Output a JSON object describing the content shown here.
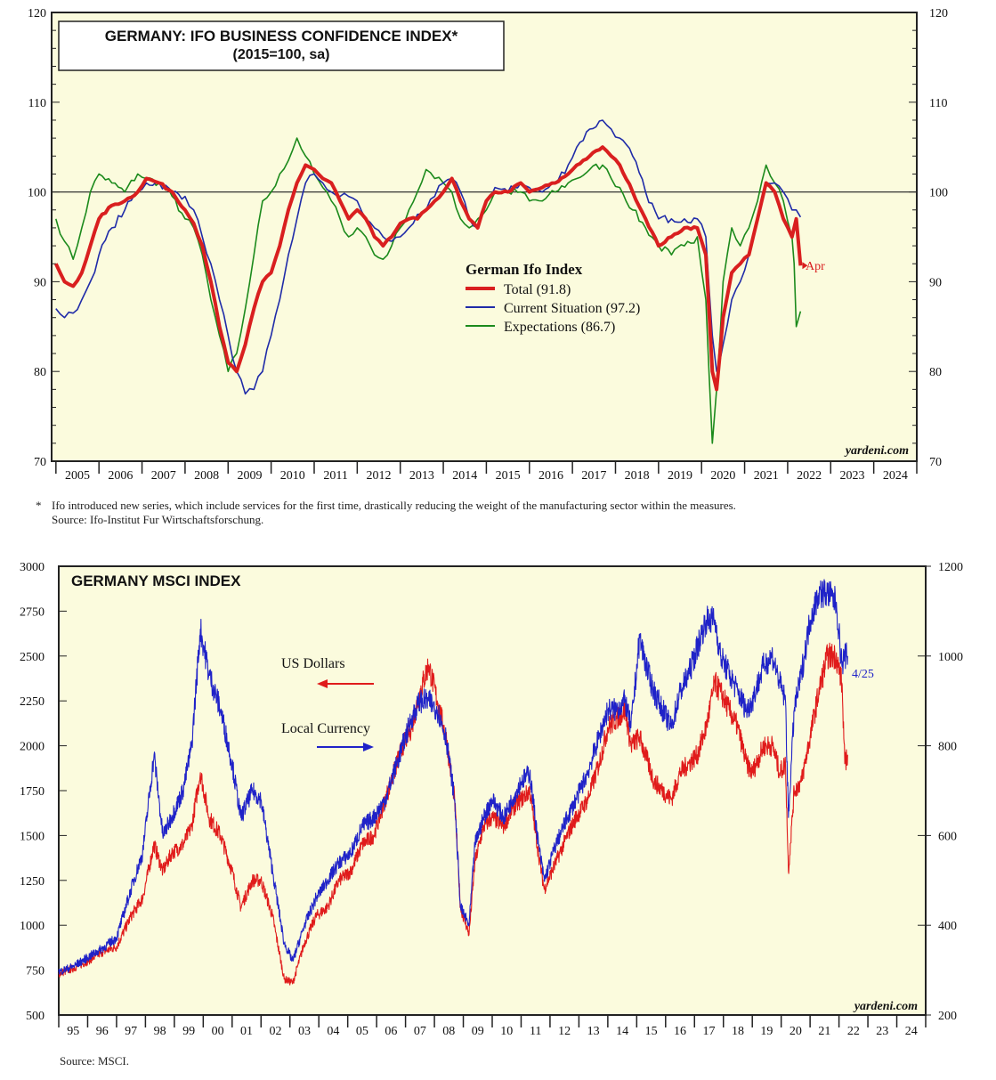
{
  "chart_data": [
    {
      "type": "line",
      "title": "GERMANY: IFO BUSINESS CONFIDENCE INDEX*",
      "subtitle": "(2015=100, sa)",
      "ylim": [
        70,
        120
      ],
      "y_ticks": [
        70,
        80,
        90,
        100,
        110,
        120
      ],
      "x_range": [
        2004.9,
        2025.0
      ],
      "x_tick_labels": [
        "2005",
        "2006",
        "2007",
        "2008",
        "2009",
        "2010",
        "2011",
        "2012",
        "2013",
        "2014",
        "2015",
        "2016",
        "2017",
        "2018",
        "2019",
        "2020",
        "2021",
        "2022",
        "2023",
        "2024"
      ],
      "reference_line": 100,
      "legend_title": "German Ifo Index",
      "last_label": "Apr",
      "source_mark": "yardeni.com",
      "series": [
        {
          "name": "Total (91.8)",
          "color": "#d91f1f",
          "x": [
            2005.0,
            2005.2,
            2005.4,
            2005.6,
            2005.8,
            2006.0,
            2006.3,
            2006.6,
            2006.9,
            2007.1,
            2007.4,
            2007.7,
            2008.0,
            2008.2,
            2008.4,
            2008.6,
            2008.8,
            2009.0,
            2009.2,
            2009.4,
            2009.6,
            2009.8,
            2010.0,
            2010.2,
            2010.4,
            2010.6,
            2010.8,
            2011.0,
            2011.2,
            2011.4,
            2011.6,
            2011.8,
            2012.0,
            2012.2,
            2012.4,
            2012.6,
            2012.8,
            2013.0,
            2013.2,
            2013.4,
            2013.6,
            2013.8,
            2014.0,
            2014.2,
            2014.4,
            2014.6,
            2014.8,
            2015.0,
            2015.2,
            2015.5,
            2015.8,
            2016.0,
            2016.3,
            2016.6,
            2016.9,
            2017.1,
            2017.4,
            2017.7,
            2017.9,
            2018.1,
            2018.4,
            2018.7,
            2019.0,
            2019.3,
            2019.6,
            2019.9,
            2020.1,
            2020.25,
            2020.35,
            2020.5,
            2020.7,
            2020.9,
            2021.1,
            2021.3,
            2021.5,
            2021.7,
            2021.9,
            2022.1,
            2022.2,
            2022.3
          ],
          "y": [
            92,
            90,
            89.5,
            91,
            94,
            97,
            98.5,
            99,
            100,
            101.5,
            101,
            100,
            98,
            96.5,
            94,
            90,
            85,
            81,
            80,
            83,
            87,
            90,
            91,
            94,
            98,
            101,
            103,
            102.5,
            101.5,
            101,
            99,
            97,
            98,
            97,
            95,
            94,
            95,
            96.5,
            97,
            97,
            98,
            99,
            100,
            101.5,
            99,
            97,
            96,
            99,
            100,
            100,
            101,
            100,
            100.5,
            101,
            102,
            103,
            104,
            105,
            104,
            103,
            100,
            97,
            94,
            95,
            96,
            96,
            93,
            80,
            78,
            86,
            91,
            92,
            93,
            97,
            101,
            100,
            97,
            95,
            97,
            91.8
          ]
        },
        {
          "name": "Current Situation (97.2)",
          "color": "#1f2ba8",
          "x": [
            2005.0,
            2005.2,
            2005.4,
            2005.6,
            2005.8,
            2006.0,
            2006.3,
            2006.6,
            2006.9,
            2007.1,
            2007.4,
            2007.7,
            2008.0,
            2008.2,
            2008.4,
            2008.6,
            2008.8,
            2009.0,
            2009.2,
            2009.4,
            2009.6,
            2009.8,
            2010.0,
            2010.2,
            2010.4,
            2010.6,
            2010.8,
            2011.0,
            2011.2,
            2011.4,
            2011.6,
            2011.8,
            2012.0,
            2012.2,
            2012.4,
            2012.6,
            2012.8,
            2013.0,
            2013.2,
            2013.4,
            2013.6,
            2013.8,
            2014.0,
            2014.2,
            2014.4,
            2014.6,
            2014.8,
            2015.0,
            2015.2,
            2015.5,
            2015.8,
            2016.0,
            2016.3,
            2016.6,
            2016.9,
            2017.1,
            2017.4,
            2017.7,
            2017.9,
            2018.1,
            2018.4,
            2018.7,
            2019.0,
            2019.3,
            2019.6,
            2019.9,
            2020.1,
            2020.25,
            2020.35,
            2020.5,
            2020.7,
            2020.9,
            2021.1,
            2021.3,
            2021.5,
            2021.7,
            2021.9,
            2022.1,
            2022.2,
            2022.3
          ],
          "y": [
            87,
            86,
            86.5,
            88,
            90,
            93,
            96,
            98,
            100,
            101,
            101,
            100,
            99.5,
            98,
            95,
            92,
            88,
            84,
            80,
            77.5,
            78,
            80,
            84,
            88,
            93,
            97,
            101,
            102,
            101,
            100,
            99.5,
            99.5,
            99,
            97,
            96,
            95,
            94.5,
            95,
            96,
            97.5,
            98,
            99.5,
            101,
            101.5,
            100,
            97,
            96,
            99,
            100.5,
            100,
            101,
            100.5,
            100,
            101,
            103,
            105,
            107,
            108,
            107,
            106,
            104,
            100,
            97,
            97,
            97,
            97,
            95,
            84,
            80,
            83,
            88,
            90,
            93,
            97,
            101,
            101,
            100,
            98,
            98,
            97.2
          ]
        },
        {
          "name": "Expectations (86.7)",
          "color": "#1c8a1c",
          "x": [
            2005.0,
            2005.2,
            2005.4,
            2005.6,
            2005.8,
            2006.0,
            2006.3,
            2006.6,
            2006.9,
            2007.1,
            2007.4,
            2007.7,
            2008.0,
            2008.2,
            2008.4,
            2008.6,
            2008.8,
            2009.0,
            2009.2,
            2009.4,
            2009.6,
            2009.8,
            2010.0,
            2010.2,
            2010.4,
            2010.6,
            2010.8,
            2011.0,
            2011.2,
            2011.4,
            2011.6,
            2011.8,
            2012.0,
            2012.2,
            2012.4,
            2012.6,
            2012.8,
            2013.0,
            2013.2,
            2013.4,
            2013.6,
            2013.8,
            2014.0,
            2014.2,
            2014.4,
            2014.6,
            2014.8,
            2015.0,
            2015.2,
            2015.5,
            2015.8,
            2016.0,
            2016.3,
            2016.6,
            2016.9,
            2017.1,
            2017.4,
            2017.7,
            2017.9,
            2018.1,
            2018.4,
            2018.7,
            2019.0,
            2019.3,
            2019.6,
            2019.9,
            2020.1,
            2020.25,
            2020.35,
            2020.5,
            2020.7,
            2020.9,
            2021.1,
            2021.3,
            2021.5,
            2021.7,
            2021.9,
            2022.1,
            2022.15,
            2022.2,
            2022.3
          ],
          "y": [
            97,
            94.5,
            92.5,
            96,
            100,
            102,
            101,
            100,
            102,
            101.5,
            101,
            99.5,
            97,
            96,
            93,
            88,
            84,
            80,
            82,
            87,
            93,
            99,
            100,
            102,
            103.5,
            106,
            104,
            102,
            100.5,
            99,
            97,
            95,
            96,
            95,
            93,
            92.5,
            94,
            96,
            98,
            100,
            102.5,
            101.5,
            101,
            100,
            97,
            96,
            97,
            98,
            100,
            100,
            100,
            99,
            99,
            100,
            101,
            101.5,
            102.5,
            103,
            101.5,
            100.5,
            98,
            96,
            94,
            93,
            94,
            95,
            88,
            72,
            78,
            90,
            96,
            94,
            96,
            99,
            103,
            101,
            99,
            95,
            92,
            85,
            86.7
          ]
        }
      ],
      "footnote": "Ifo introduced new series, which include services for the first time, drastically reducing the weight of the manufacturing sector within the measures.",
      "source": "Source: Ifo-Institut Fur Wirtschaftsforschung."
    },
    {
      "type": "line",
      "title": "GERMANY MSCI INDEX",
      "ylim_left": [
        500,
        3000
      ],
      "ylim_right": [
        200,
        1200
      ],
      "y_ticks_left": [
        500,
        750,
        1000,
        1250,
        1500,
        1750,
        2000,
        2250,
        2500,
        2750,
        3000
      ],
      "y_ticks_right": [
        200,
        400,
        600,
        800,
        1000,
        1200
      ],
      "x_range": [
        1995.0,
        2025.0
      ],
      "x_tick_labels": [
        "95",
        "96",
        "97",
        "98",
        "99",
        "00",
        "01",
        "02",
        "03",
        "04",
        "05",
        "06",
        "07",
        "08",
        "09",
        "10",
        "11",
        "12",
        "13",
        "14",
        "15",
        "16",
        "17",
        "18",
        "19",
        "20",
        "21",
        "22",
        "23",
        "24"
      ],
      "last_label": "4/25",
      "source_mark": "yardeni.com",
      "series": [
        {
          "name": "US Dollars",
          "color": "#e01b1b",
          "axis": "left",
          "x": [
            1995.0,
            1995.5,
            1996.0,
            1996.5,
            1997.0,
            1997.5,
            1997.9,
            1998.3,
            1998.6,
            1998.9,
            1999.3,
            1999.6,
            1999.9,
            2000.2,
            2000.6,
            2001.0,
            2001.3,
            2001.7,
            2002.0,
            2002.4,
            2002.8,
            2003.1,
            2003.5,
            2003.9,
            2004.3,
            2004.7,
            2005.1,
            2005.5,
            2005.9,
            2006.3,
            2006.6,
            2006.9,
            2007.2,
            2007.5,
            2007.8,
            2008.1,
            2008.4,
            2008.7,
            2008.9,
            2009.2,
            2009.4,
            2009.7,
            2010.0,
            2010.4,
            2010.7,
            2011.0,
            2011.3,
            2011.6,
            2011.8,
            2012.2,
            2012.6,
            2012.9,
            2013.3,
            2013.7,
            2014.0,
            2014.3,
            2014.6,
            2014.8,
            2015.1,
            2015.4,
            2015.6,
            2015.9,
            2016.2,
            2016.5,
            2016.8,
            2017.1,
            2017.4,
            2017.7,
            2017.9,
            2018.2,
            2018.5,
            2018.8,
            2019.0,
            2019.4,
            2019.7,
            2019.95,
            2020.15,
            2020.25,
            2020.45,
            2020.7,
            2021.0,
            2021.3,
            2021.6,
            2021.9,
            2022.1,
            2022.2,
            2022.3
          ],
          "y": [
            730,
            760,
            800,
            850,
            880,
            1050,
            1150,
            1450,
            1300,
            1400,
            1450,
            1550,
            1850,
            1600,
            1500,
            1300,
            1100,
            1250,
            1250,
            1050,
            700,
            680,
            900,
            1050,
            1100,
            1250,
            1300,
            1450,
            1500,
            1700,
            1850,
            2000,
            2100,
            2300,
            2450,
            2250,
            2050,
            1700,
            1100,
            950,
            1350,
            1550,
            1600,
            1550,
            1650,
            1700,
            1750,
            1400,
            1200,
            1350,
            1500,
            1600,
            1700,
            1900,
            2100,
            2150,
            2200,
            2000,
            2050,
            1900,
            1800,
            1750,
            1700,
            1850,
            1900,
            1950,
            2100,
            2350,
            2300,
            2200,
            2100,
            1900,
            1850,
            2000,
            2000,
            1850,
            1900,
            1300,
            1750,
            1800,
            2050,
            2300,
            2500,
            2500,
            2350,
            1900,
            1950
          ]
        },
        {
          "name": "Local Currency",
          "color": "#1f22c8",
          "axis": "left",
          "x": [
            1995.0,
            1995.5,
            1996.0,
            1996.5,
            1997.0,
            1997.5,
            1997.9,
            1998.3,
            1998.6,
            1998.9,
            1999.3,
            1999.6,
            1999.9,
            2000.2,
            2000.6,
            2001.0,
            2001.3,
            2001.7,
            2002.0,
            2002.4,
            2002.8,
            2003.1,
            2003.5,
            2003.9,
            2004.3,
            2004.7,
            2005.1,
            2005.5,
            2005.9,
            2006.3,
            2006.6,
            2006.9,
            2007.2,
            2007.5,
            2007.8,
            2008.1,
            2008.4,
            2008.7,
            2008.9,
            2009.2,
            2009.4,
            2009.7,
            2010.0,
            2010.4,
            2010.7,
            2011.0,
            2011.3,
            2011.6,
            2011.8,
            2012.2,
            2012.6,
            2012.9,
            2013.3,
            2013.7,
            2014.0,
            2014.3,
            2014.6,
            2014.8,
            2015.1,
            2015.4,
            2015.6,
            2015.9,
            2016.2,
            2016.5,
            2016.8,
            2017.1,
            2017.4,
            2017.7,
            2017.9,
            2018.2,
            2018.5,
            2018.8,
            2019.0,
            2019.4,
            2019.7,
            2019.95,
            2020.15,
            2020.25,
            2020.45,
            2020.7,
            2021.0,
            2021.3,
            2021.6,
            2021.9,
            2022.1,
            2022.2,
            2022.3
          ],
          "y": [
            740,
            770,
            820,
            870,
            930,
            1200,
            1400,
            1950,
            1500,
            1600,
            1750,
            2000,
            2650,
            2400,
            2200,
            1900,
            1600,
            1750,
            1700,
            1300,
            900,
            800,
            1000,
            1150,
            1250,
            1350,
            1400,
            1550,
            1600,
            1700,
            1850,
            2000,
            2150,
            2250,
            2250,
            2200,
            2050,
            1700,
            1100,
            1000,
            1450,
            1600,
            1700,
            1600,
            1700,
            1800,
            1850,
            1450,
            1250,
            1450,
            1600,
            1700,
            1850,
            2050,
            2200,
            2200,
            2250,
            2100,
            2600,
            2400,
            2300,
            2200,
            2100,
            2300,
            2400,
            2550,
            2700,
            2700,
            2500,
            2400,
            2300,
            2200,
            2250,
            2450,
            2500,
            2350,
            2250,
            1600,
            2200,
            2400,
            2700,
            2850,
            2850,
            2800,
            2450,
            2500,
            2500
          ]
        }
      ],
      "source": "Source: MSCI."
    }
  ]
}
